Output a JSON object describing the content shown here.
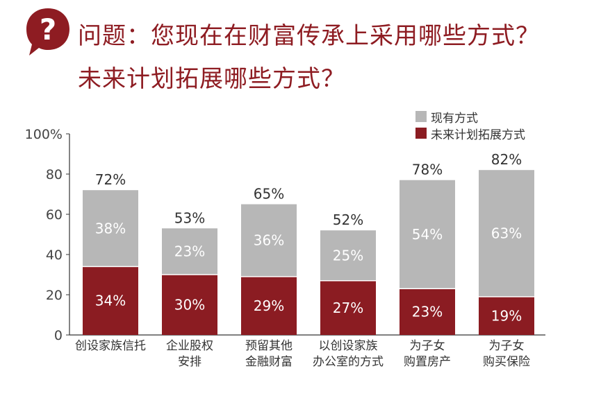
{
  "question": {
    "line1": "问题：您现在在财富传承上采用哪些方式？",
    "line2": "未来计划拓展哪些方式？",
    "icon": "question-mark-bubble-icon"
  },
  "colors": {
    "current": "#b7b7b7",
    "future": "#8b1c22",
    "title": "#8e1c22"
  },
  "chart_data": {
    "type": "bar",
    "stacked": true,
    "categories": [
      [
        "创设家族信托"
      ],
      [
        "企业股权",
        "安排"
      ],
      [
        "预留其他",
        "金融财富"
      ],
      [
        "以创设家族",
        "办公室的方式"
      ],
      [
        "为子女",
        "购置房产"
      ],
      [
        "为子女",
        "购买保险"
      ]
    ],
    "series": [
      {
        "name": "未来计划拓展方式",
        "values": [
          34,
          30,
          29,
          27,
          23,
          19
        ]
      },
      {
        "name": "现有方式",
        "values": [
          38,
          23,
          36,
          25,
          54,
          63
        ]
      }
    ],
    "totals": [
      72,
      53,
      65,
      52,
      78,
      82
    ],
    "y_ticks": [
      "0",
      "20",
      "40",
      "60",
      "80",
      "100%"
    ],
    "value_suffix": "%",
    "ylim": [
      0,
      100
    ],
    "grid": false,
    "legend_placement": "top-right"
  }
}
